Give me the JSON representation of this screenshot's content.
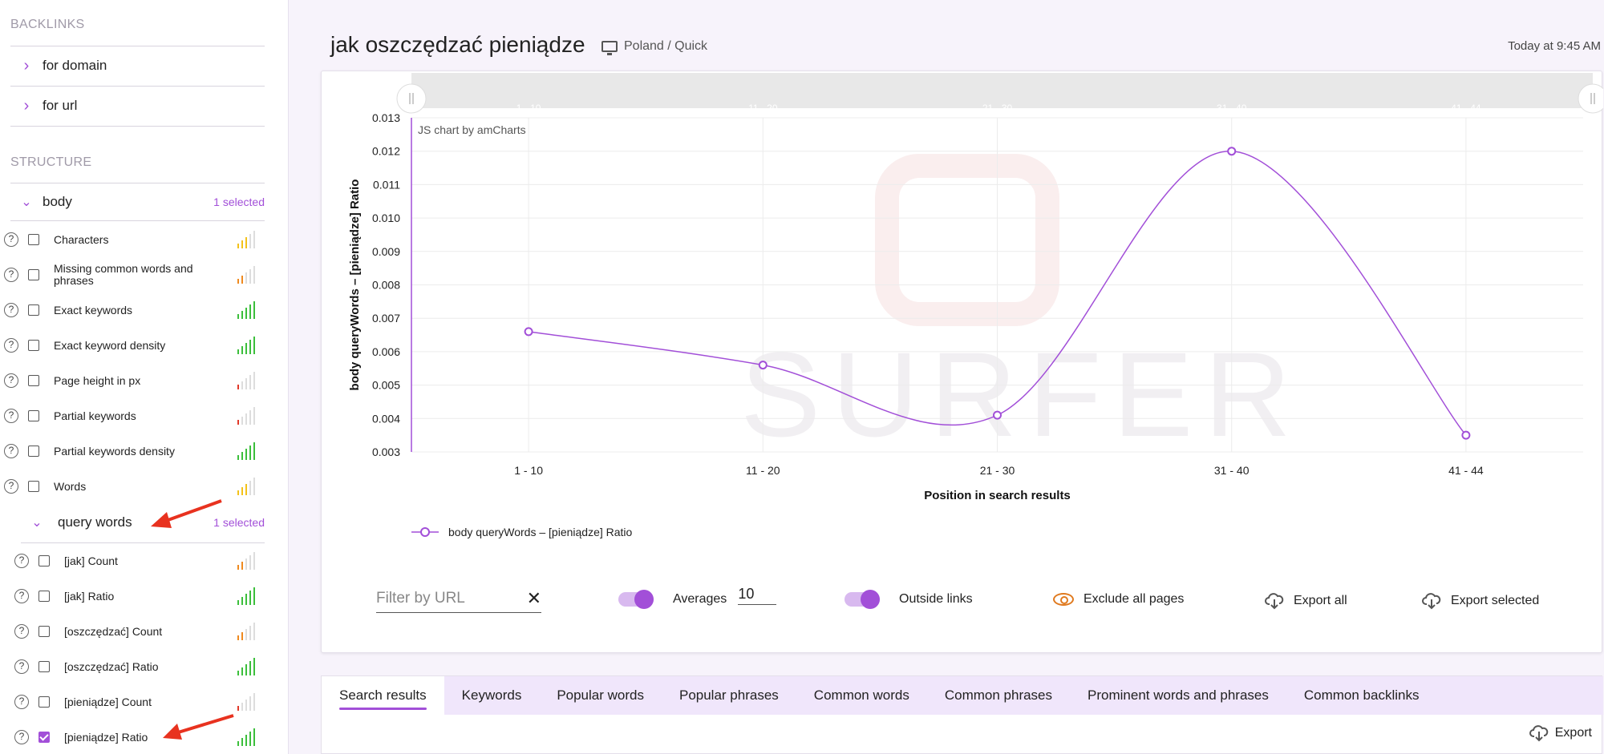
{
  "sidebar": {
    "backlinks_header": "BACKLINKS",
    "backlinks": [
      "for domain",
      "for url"
    ],
    "structure_header": "STRUCTURE",
    "body_group": {
      "label": "body",
      "selected": "1 selected"
    },
    "body_items": [
      {
        "label": "Characters",
        "checked": false,
        "bars": [
          "#f3c21a",
          "#f3c21a",
          "#f3c21a",
          "#ddd",
          "#ddd"
        ]
      },
      {
        "label": "Missing common words and phrases",
        "checked": false,
        "bars": [
          "#ef8a1f",
          "#ef8a1f",
          "#ddd",
          "#ddd",
          "#ddd"
        ]
      },
      {
        "label": "Exact keywords",
        "checked": false,
        "bars": [
          "#3cbf3c",
          "#3cbf3c",
          "#3cbf3c",
          "#3cbf3c",
          "#3cbf3c"
        ]
      },
      {
        "label": "Exact keyword density",
        "checked": false,
        "bars": [
          "#3cbf3c",
          "#3cbf3c",
          "#3cbf3c",
          "#3cbf3c",
          "#3cbf3c"
        ]
      },
      {
        "label": "Page height in px",
        "checked": false,
        "bars": [
          "#e23a2a",
          "#ddd",
          "#ddd",
          "#ddd",
          "#ddd"
        ]
      },
      {
        "label": "Partial keywords",
        "checked": false,
        "bars": [
          "#e23a2a",
          "#ddd",
          "#ddd",
          "#ddd",
          "#ddd"
        ]
      },
      {
        "label": "Partial keywords density",
        "checked": false,
        "bars": [
          "#3cbf3c",
          "#3cbf3c",
          "#3cbf3c",
          "#3cbf3c",
          "#3cbf3c"
        ]
      },
      {
        "label": "Words",
        "checked": false,
        "bars": [
          "#f3c21a",
          "#f3c21a",
          "#f3c21a",
          "#ddd",
          "#ddd"
        ]
      }
    ],
    "query_group": {
      "label": "query words",
      "selected": "1 selected"
    },
    "query_items": [
      {
        "label": "[jak] Count",
        "checked": false,
        "bars": [
          "#ef8a1f",
          "#ef8a1f",
          "#ddd",
          "#ddd",
          "#ddd"
        ]
      },
      {
        "label": "[jak] Ratio",
        "checked": false,
        "bars": [
          "#3cbf3c",
          "#3cbf3c",
          "#3cbf3c",
          "#3cbf3c",
          "#3cbf3c"
        ]
      },
      {
        "label": "[oszczędzać] Count",
        "checked": false,
        "bars": [
          "#ef8a1f",
          "#ef8a1f",
          "#ddd",
          "#ddd",
          "#ddd"
        ]
      },
      {
        "label": "[oszczędzać] Ratio",
        "checked": false,
        "bars": [
          "#3cbf3c",
          "#3cbf3c",
          "#3cbf3c",
          "#3cbf3c",
          "#3cbf3c"
        ]
      },
      {
        "label": "[pieniądze] Count",
        "checked": false,
        "bars": [
          "#e23a2a",
          "#ddd",
          "#ddd",
          "#ddd",
          "#ddd"
        ]
      },
      {
        "label": "[pieniądze] Ratio",
        "checked": true,
        "bars": [
          "#3cbf3c",
          "#3cbf3c",
          "#3cbf3c",
          "#3cbf3c",
          "#3cbf3c"
        ]
      }
    ]
  },
  "header": {
    "title": "jak oszczędzać pieniądze",
    "location": "Poland / Quick",
    "timestamp": "Today at 9:45 AM"
  },
  "chart_data": {
    "type": "line",
    "credit": "JS chart by amCharts",
    "watermark": "SURFER",
    "categories": [
      "1 - 10",
      "11 - 20",
      "21 - 30",
      "31 - 40",
      "41 - 44"
    ],
    "series": [
      {
        "name": "body queryWords – [pieniądze] Ratio",
        "values": [
          0.0066,
          0.0056,
          0.0041,
          0.012,
          0.0035
        ],
        "color": "#a24fd8"
      }
    ],
    "xlabel": "Position in search results",
    "ylabel": "body queryWords – [pieniądze] Ratio",
    "yticks": [
      "0.003",
      "0.004",
      "0.005",
      "0.006",
      "0.007",
      "0.008",
      "0.009",
      "0.010",
      "0.011",
      "0.012",
      "0.013"
    ],
    "ylim": [
      0.003,
      0.013
    ],
    "grid": true,
    "legend": "bottom-left"
  },
  "controls": {
    "filter_placeholder": "Filter by URL",
    "averages_label": "Averages",
    "averages_value": "10",
    "outside_links_label": "Outside links",
    "exclude_label": "Exclude all pages",
    "export_all": "Export all",
    "export_selected": "Export selected"
  },
  "tabs": [
    "Search results",
    "Keywords",
    "Popular words",
    "Popular phrases",
    "Common words",
    "Common phrases",
    "Prominent words and phrases",
    "Common backlinks"
  ],
  "export_label": "Export",
  "colors": {
    "accent": "#a24fd8",
    "orange": "#e07a1f",
    "arrow": "#e8321f"
  }
}
